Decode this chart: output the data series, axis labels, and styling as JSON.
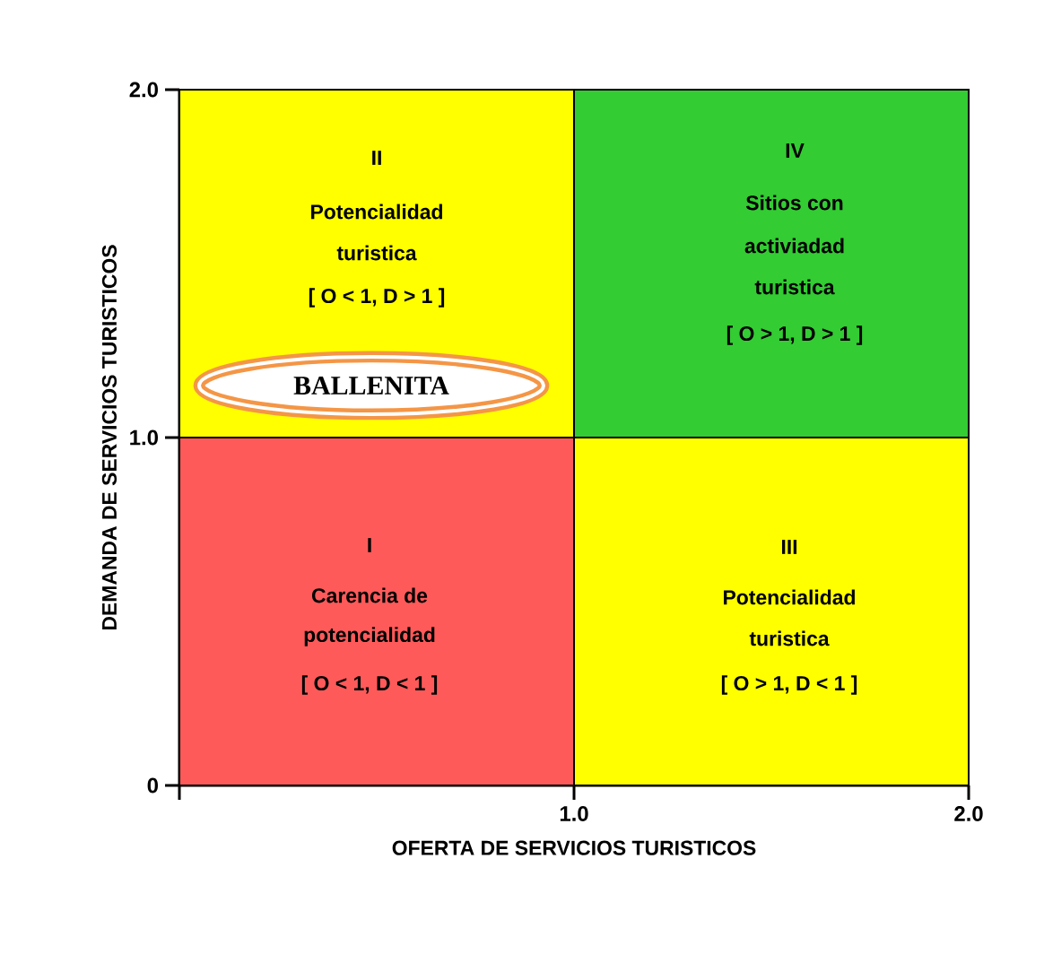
{
  "chart_data": {
    "type": "bar",
    "stacked": true,
    "xlabel": "OFERTA DE SERVICIOS TURISTICOS",
    "ylabel": "DEMANDA DE SERVICIOS TURISTICOS",
    "x": [
      0.5,
      1.5
    ],
    "series": [
      {
        "values": [
          1.0,
          1.0
        ],
        "colors": [
          "#ff5a5a",
          "#ffff00"
        ]
      },
      {
        "values": [
          1.0,
          1.0
        ],
        "colors": [
          "#ffff00",
          "#33cc33"
        ]
      }
    ],
    "xlim": [
      0,
      2
    ],
    "ylim": [
      0,
      2
    ],
    "xticks": [
      {
        "value": 0,
        "label": null
      },
      {
        "value": 1,
        "label": "1.0"
      },
      {
        "value": 2,
        "label": "2.0"
      }
    ],
    "yticks": [
      0,
      {
        "value": 1,
        "label": "1.0"
      },
      {
        "value": 2,
        "label": "2.0"
      }
    ],
    "annotations": [
      "II",
      "Potencialidad",
      "turistica",
      "[ O < 1, D > 1 ]",
      "IV",
      "Sitios con",
      "activiadad",
      "turistica",
      "[ O > 1, D > 1 ]",
      "I",
      "Carencia de",
      "potencialidad",
      "[ O < 1,  D <  1 ]",
      "III",
      "Potencialidad",
      "turistica",
      "[ O  > 1, D  <  1 ]",
      "BALLENITA"
    ]
  }
}
